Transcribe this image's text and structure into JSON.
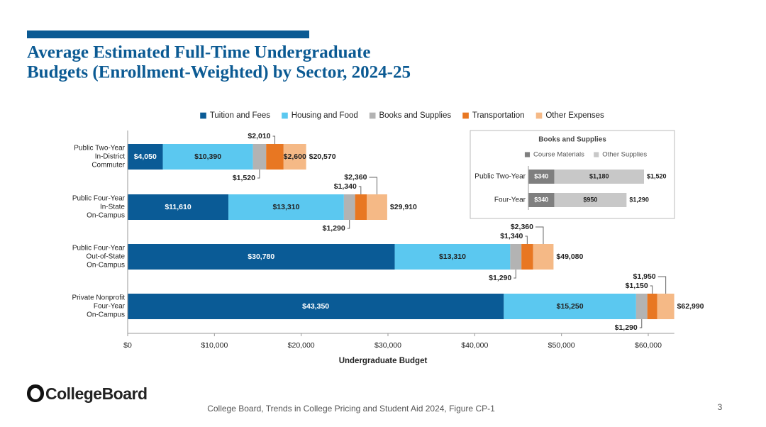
{
  "slide": {
    "logo": "CollegeBoard",
    "source": "College Board, Trends in College Pricing and Student Aid 2024, Figure CP-1",
    "page_number": "3"
  },
  "chart_data": [
    {
      "type": "bar",
      "orientation": "horizontal",
      "stacked": true,
      "title": [
        "Average Estimated Full-Time Undergraduate",
        "Budgets (Enrollment-Weighted) by Sector, 2024-25"
      ],
      "x_label": "Undergraduate Budget",
      "categories": [
        [
          "Public Two-Year",
          "In-District",
          "Commuter"
        ],
        [
          "Public Four-Year",
          "In-State",
          "On-Campus"
        ],
        [
          "Public Four-Year",
          "Out-of-State",
          "On-Campus"
        ],
        [
          "Private Nonprofit",
          "Four-Year",
          "On-Campus"
        ]
      ],
      "series": [
        {
          "name": "Tuition and Fees",
          "color": "#0a5b96",
          "values": [
            4050,
            11610,
            30780,
            43350
          ],
          "value_labels": [
            "$4,050",
            "$11,610",
            "$30,780",
            "$43,350"
          ]
        },
        {
          "name": "Housing and Food",
          "color": "#5bc8f0",
          "values": [
            10390,
            13310,
            13310,
            15250
          ],
          "value_labels": [
            "$10,390",
            "$13,310",
            "$13,310",
            "$15,250"
          ]
        },
        {
          "name": "Books and Supplies",
          "color": "#b3b3b3",
          "values": [
            1520,
            1290,
            1290,
            1290
          ],
          "value_labels": [
            "$1,520",
            "$1,290",
            "$1,290",
            "$1,290"
          ]
        },
        {
          "name": "Transportation",
          "color": "#e87722",
          "values": [
            2010,
            1340,
            1340,
            1150
          ],
          "value_labels": [
            "$2,010",
            "$1,340",
            "$1,340",
            "$1,150"
          ]
        },
        {
          "name": "Other Expenses",
          "color": "#f5b986",
          "values": [
            2600,
            2360,
            2360,
            1950
          ],
          "value_labels": [
            "$2,600",
            "$2,360",
            "$2,360",
            "$1,950"
          ]
        }
      ],
      "totals": {
        "values": [
          20570,
          29910,
          49080,
          62990
        ],
        "value_labels": [
          "$20,570",
          "$29,910",
          "$49,080",
          "$62,990"
        ]
      },
      "xlim": [
        0,
        63000
      ],
      "xticks": [
        {
          "value": 0,
          "label": "$0"
        },
        {
          "value": 10000,
          "label": "$10,000"
        },
        {
          "value": 20000,
          "label": "$20,000"
        },
        {
          "value": 30000,
          "label": "$30,000"
        },
        {
          "value": 40000,
          "label": "$40,000"
        },
        {
          "value": 50000,
          "label": "$50,000"
        },
        {
          "value": 60000,
          "label": "$60,000"
        }
      ],
      "legend": "top"
    },
    {
      "type": "bar",
      "orientation": "horizontal",
      "stacked": true,
      "title": "Books and Supplies",
      "categories": [
        "Public Two-Year",
        "Four-Year"
      ],
      "series": [
        {
          "name": "Course Materials",
          "color": "#7f7f7f",
          "values": [
            340,
            340
          ],
          "value_labels": [
            "$340",
            "$340"
          ]
        },
        {
          "name": "Other Supplies",
          "color": "#c8c8c8",
          "values": [
            1180,
            950
          ],
          "value_labels": [
            "$1,180",
            "$950"
          ]
        }
      ],
      "totals": {
        "values": [
          1520,
          1290
        ],
        "value_labels": [
          "$1,520",
          "$1,290"
        ]
      },
      "xlim": [
        0,
        1520
      ],
      "legend": "top"
    }
  ]
}
